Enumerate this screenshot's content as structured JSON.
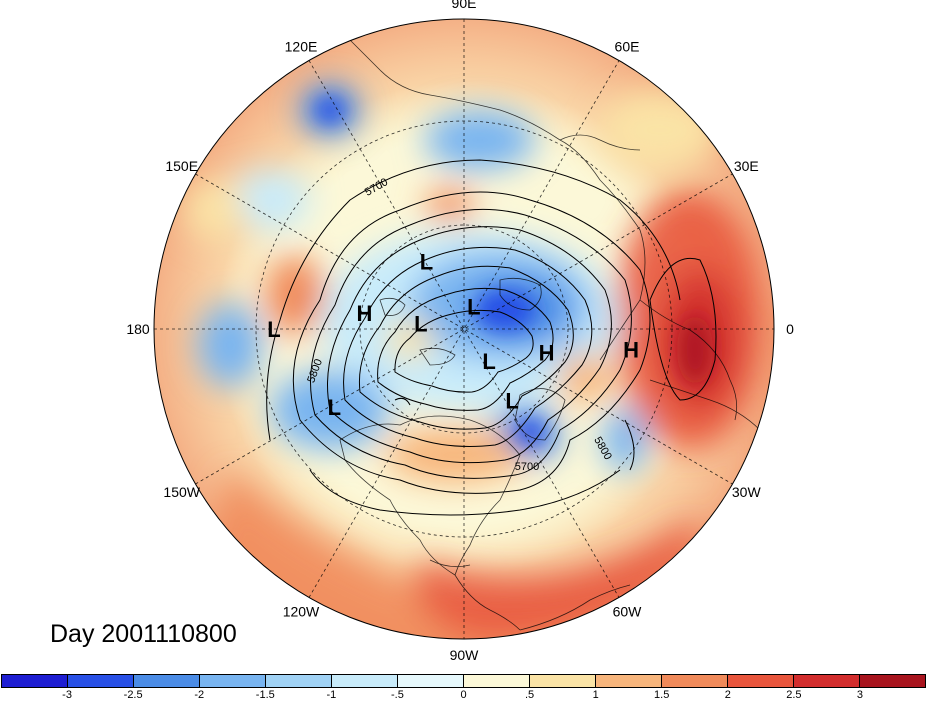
{
  "map": {
    "projection": "north polar stereographic",
    "fill_field": "anomaly",
    "contour_field": "geopotential height"
  },
  "longitude_labels": [
    "90E",
    "60E",
    "30E",
    "0",
    "30W",
    "60W",
    "90W",
    "120W",
    "150W",
    "180",
    "150E",
    "120E"
  ],
  "contour_labels": [
    "5700",
    "5800",
    "5800",
    "5700"
  ],
  "pressure_centers": [
    {
      "label": "L",
      "lat": 62,
      "lon": 119
    },
    {
      "label": "H",
      "lat": 54,
      "lon": 171
    },
    {
      "label": "L",
      "lat": 74,
      "lon": 173
    },
    {
      "label": "L",
      "lat": 81,
      "lon": 66
    },
    {
      "label": "L",
      "lat": 75,
      "lon": -52
    },
    {
      "label": "L",
      "lat": 59,
      "lon": -56
    },
    {
      "label": "H",
      "lat": 59,
      "lon": -16
    },
    {
      "label": "H",
      "lat": 33,
      "lon": -7
    },
    {
      "label": "L",
      "lat": 38,
      "lon": -149
    },
    {
      "label": "L",
      "lat": 27,
      "lon": 180
    }
  ],
  "day_label": "Day 2001110800",
  "colorbar": {
    "colors": [
      "#1e1ed2",
      "#2850e6",
      "#4b8ce6",
      "#78b4f0",
      "#a0d2f5",
      "#c8ebfa",
      "#e6f8fc",
      "#fcf8d8",
      "#fae3a6",
      "#f7b57c",
      "#f08a5a",
      "#e8553c",
      "#d22d2d",
      "#a8141e"
    ],
    "tick_labels": [
      "-3",
      "-2.5",
      "-2",
      "-1.5",
      "-1",
      "-.5",
      "0",
      ".5",
      "1",
      "1.5",
      "2",
      "2.5",
      "3"
    ]
  }
}
